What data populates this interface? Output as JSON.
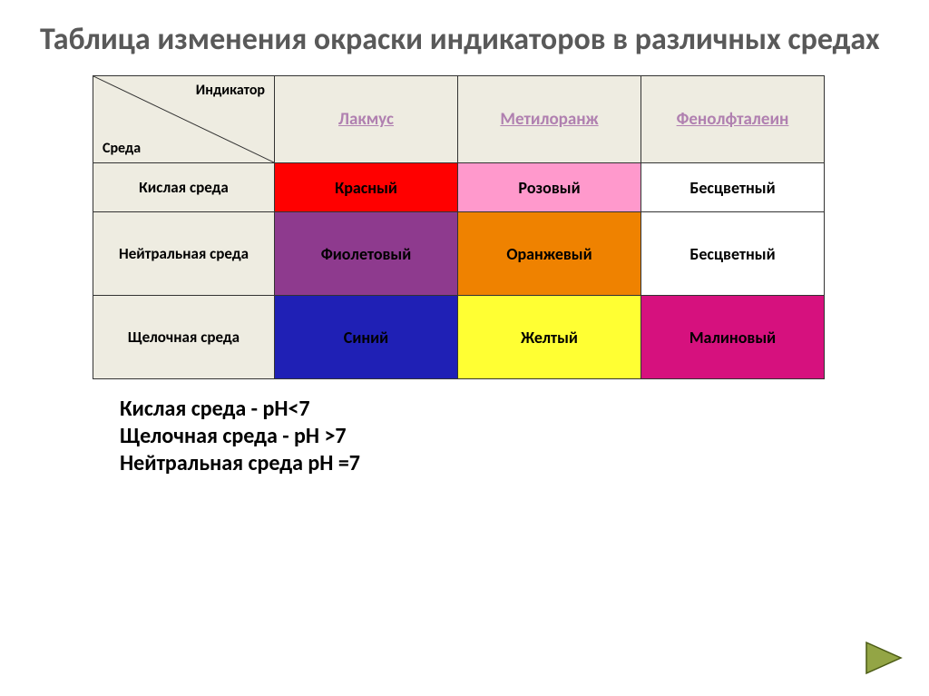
{
  "title": "Таблица изменения окраски индикаторов в различных средах",
  "diagonal": {
    "top": "Индикатор",
    "bottom": "Среда"
  },
  "columns": [
    {
      "label": "Лакмус",
      "link_color": "#b080b0"
    },
    {
      "label": "Метилоранж",
      "link_color": "#b080b0"
    },
    {
      "label": "Фенолфталеин",
      "link_color": "#b080b0"
    }
  ],
  "rows": [
    {
      "label": "Кислая среда",
      "height": "short",
      "cells": [
        {
          "text": "Красный",
          "bg": "#ff0000",
          "fg": "#000000"
        },
        {
          "text": "Розовый",
          "bg": "#ff99cc",
          "fg": "#000000"
        },
        {
          "text": "Бесцветный",
          "bg": "#ffffff",
          "fg": "#000000"
        }
      ]
    },
    {
      "label": "Нейтральная среда",
      "height": "tall",
      "cells": [
        {
          "text": "Фиолетовый",
          "bg": "#8e3a8e",
          "fg": "#000000"
        },
        {
          "text": "Оранжевый",
          "bg": "#ef8200",
          "fg": "#000000"
        },
        {
          "text": "Бесцветный",
          "bg": "#ffffff",
          "fg": "#000000"
        }
      ]
    },
    {
      "label": "Щелочная среда",
      "height": "tall",
      "cells": [
        {
          "text": "Синий",
          "bg": "#1f20b5",
          "fg": "#000000"
        },
        {
          "text": "Желтый",
          "bg": "#ffff33",
          "fg": "#000000"
        },
        {
          "text": "Малиновый",
          "bg": "#d6117e",
          "fg": "#000000"
        }
      ]
    }
  ],
  "notes": [
    "Кислая среда - рН<7",
    "Щелочная среда  - рН >7",
    "Нейтральная среда рН =7"
  ],
  "colors": {
    "slide_bg": "#ffffff",
    "title_color": "#595959",
    "header_bg": "#eeece1",
    "border": "#333333",
    "nav_fill": "#93a545",
    "nav_stroke": "#4a5a14"
  },
  "nav": {
    "label": "next-slide"
  }
}
